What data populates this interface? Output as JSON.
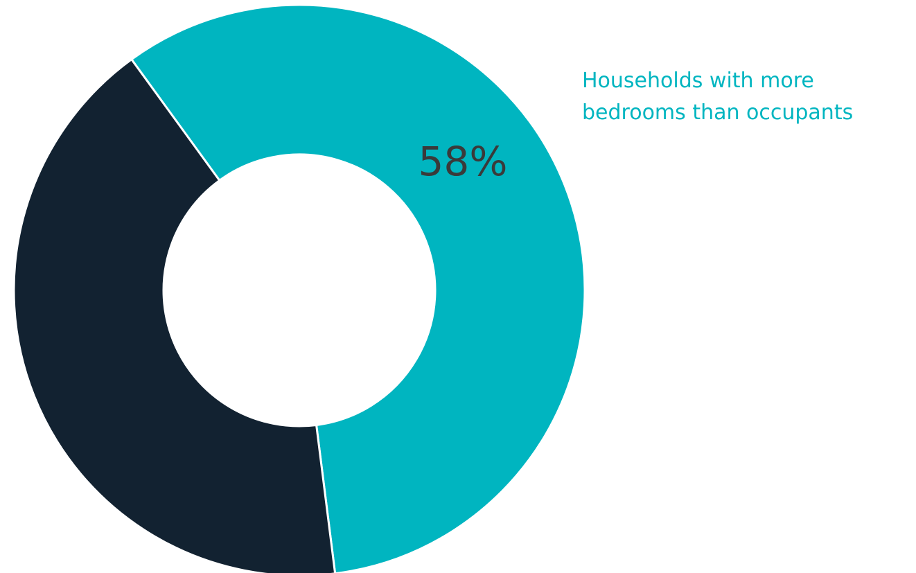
{
  "chart_data": {
    "type": "pie",
    "donut": true,
    "title": "",
    "slices": [
      {
        "label": "Households with more bedrooms than occupants",
        "value": 58,
        "display": "58%",
        "color": "#00B5C0",
        "label_lines": [
          "Households with more",
          "bedrooms than occupants"
        ]
      },
      {
        "label": "",
        "value": 42,
        "display": "",
        "color": "#122231"
      }
    ],
    "legend_placement": "top-right"
  }
}
